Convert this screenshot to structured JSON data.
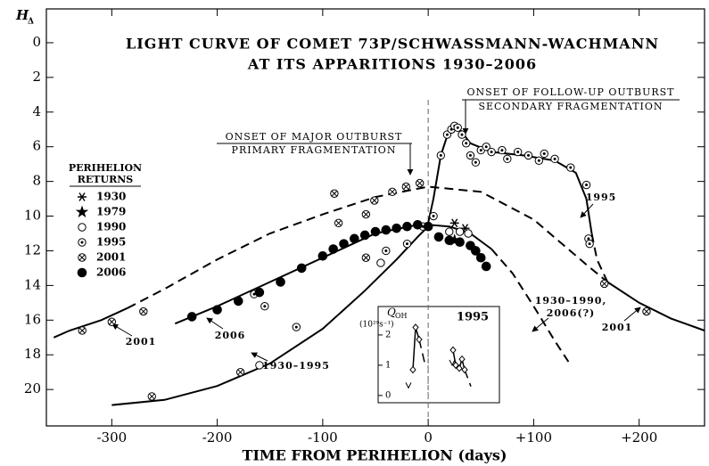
{
  "chart_data": {
    "type": "scatter",
    "title": [
      "LIGHT CURVE OF COMET 73P/SCHWASSMANN-WACHMANN",
      "AT ITS APPARITIONS 1930–2006"
    ],
    "x_label": "TIME FROM PERIHELION (days)",
    "y_label": "H",
    "y_label_sub": "Δ",
    "xlim": [
      -362,
      262
    ],
    "ylim": [
      -1.95,
      22.1
    ],
    "y_inverted": true,
    "xticks": [
      -300,
      -200,
      -100,
      0,
      {
        "value": 100,
        "label": "+100"
      },
      {
        "value": 200,
        "label": "+200"
      }
    ],
    "yticks": [
      0,
      2,
      4,
      6,
      8,
      10,
      12,
      14,
      16,
      18,
      20
    ],
    "legend_title": [
      "PERIHELION",
      "RETURNS"
    ],
    "series": [
      {
        "name": "1930",
        "marker": "asterisk",
        "x": [
          25,
          35
        ],
        "values": [
          10.4,
          10.7
        ]
      },
      {
        "name": "1979",
        "marker": "star",
        "x": [
          25
        ],
        "values": [
          11.4
        ]
      },
      {
        "name": "1990",
        "marker": "circle",
        "x": [
          -160,
          -45,
          20,
          30,
          38
        ],
        "values": [
          18.6,
          12.7,
          10.9,
          10.9,
          11.0
        ]
      },
      {
        "name": "1995",
        "marker": "dotted-circle",
        "x": [
          -165,
          -155,
          -125,
          -40,
          -20,
          -5,
          5,
          12,
          18,
          22,
          25,
          28,
          32,
          36,
          40,
          45,
          50,
          55,
          60,
          70,
          75,
          85,
          95,
          105,
          110,
          120,
          135,
          150,
          152,
          153
        ],
        "values": [
          14.5,
          15.2,
          16.4,
          12.0,
          11.6,
          10.6,
          10.0,
          6.5,
          5.3,
          5.0,
          4.8,
          4.9,
          5.3,
          5.8,
          6.5,
          6.9,
          6.2,
          6.0,
          6.3,
          6.2,
          6.7,
          6.3,
          6.5,
          6.8,
          6.4,
          6.7,
          7.2,
          8.2,
          11.3,
          11.6
        ]
      },
      {
        "name": "2001",
        "marker": "crossed-circle",
        "x": [
          -328,
          -300,
          -270,
          -262,
          -178,
          -89,
          -85,
          -59,
          -59,
          -51,
          -34,
          -21,
          -8,
          167,
          207
        ],
        "values": [
          16.6,
          16.1,
          15.5,
          20.4,
          19.0,
          8.7,
          10.4,
          9.9,
          12.4,
          9.1,
          8.6,
          8.3,
          8.1,
          13.9,
          15.5
        ]
      },
      {
        "name": "2006",
        "marker": "filled-circle",
        "x": [
          -224,
          -200,
          -180,
          -160,
          -140,
          -120,
          -100,
          -90,
          -80,
          -70,
          -60,
          -50,
          -40,
          -30,
          -20,
          -10,
          0,
          10,
          20,
          30,
          40,
          45,
          50,
          55
        ],
        "values": [
          15.8,
          15.4,
          14.9,
          14.4,
          13.8,
          13.0,
          12.3,
          11.9,
          11.6,
          11.3,
          11.1,
          10.9,
          10.8,
          10.7,
          10.6,
          10.5,
          10.6,
          11.2,
          11.4,
          11.5,
          11.7,
          12.0,
          12.4,
          12.9
        ]
      }
    ],
    "curves": [
      {
        "dashed": false,
        "x": [
          -355,
          -340,
          -310,
          -285
        ],
        "values": [
          17.0,
          16.6,
          16.0,
          15.3
        ]
      },
      {
        "dashed": true,
        "x": [
          -285,
          -250,
          -200,
          -150,
          -100,
          -50,
          0,
          50,
          100,
          150,
          170
        ],
        "values": [
          15.3,
          14.2,
          12.5,
          11.0,
          9.9,
          8.9,
          8.3,
          8.6,
          10.2,
          12.8,
          13.8
        ]
      },
      {
        "dashed": false,
        "x": [
          170,
          200,
          230,
          262
        ],
        "values": [
          13.8,
          15.0,
          15.9,
          16.6
        ]
      },
      {
        "dashed": false,
        "x": [
          -240,
          -200,
          -150,
          -100,
          -50,
          -10,
          0
        ],
        "values": [
          16.2,
          15.2,
          13.8,
          12.4,
          11.0,
          10.5,
          10.4
        ]
      },
      {
        "dashed": false,
        "x": [
          0,
          5,
          12,
          20,
          30,
          40,
          60,
          90,
          120,
          140,
          150,
          155
        ],
        "values": [
          10.4,
          9.0,
          6.5,
          5.0,
          5.0,
          5.8,
          6.3,
          6.5,
          6.8,
          7.5,
          9.0,
          11.0
        ]
      },
      {
        "dashed": true,
        "x": [
          155,
          160,
          170
        ],
        "values": [
          11.0,
          12.5,
          13.8
        ]
      },
      {
        "dashed": false,
        "x": [
          -300,
          -250,
          -200,
          -150,
          -100,
          -60,
          -30,
          -10,
          0
        ],
        "values": [
          20.9,
          20.6,
          19.8,
          18.5,
          16.5,
          14.3,
          12.5,
          11.2,
          10.6
        ]
      },
      {
        "dashed": false,
        "x": [
          0,
          20,
          40,
          60
        ],
        "values": [
          10.5,
          10.6,
          11.0,
          11.9
        ]
      },
      {
        "dashed": true,
        "x": [
          60,
          80,
          100,
          120,
          133
        ],
        "values": [
          11.9,
          13.3,
          15.2,
          17.2,
          18.4
        ]
      }
    ],
    "annotations": [
      "ONSET OF MAJOR OUTBURST",
      "PRIMARY FRAGMENTATION",
      "ONSET OF FOLLOW-UP OUTBURST",
      "SECONDARY FRAGMENTATION",
      "1995",
      "2001",
      "2006",
      "1930–1995",
      "1930–1990,",
      "2006(?)",
      "2001"
    ],
    "inset": {
      "title": "1995",
      "y_label": "Q",
      "y_label_sub": "OH",
      "y_unit": "(10²⁹s⁻¹)",
      "xlim": [
        -56,
        80
      ],
      "ylim": [
        -0.24,
        2.94
      ],
      "yticks": [
        0,
        1,
        2
      ],
      "points": {
        "x": [
          -17,
          -14,
          -10,
          28,
          31,
          35,
          38,
          41
        ],
        "values": [
          0.85,
          2.25,
          1.85,
          1.5,
          1.0,
          0.9,
          1.2,
          0.85
        ]
      },
      "upper_limits": {
        "x": [
          -22,
          27
        ],
        "values": [
          0.25,
          1.0
        ]
      },
      "curves": [
        {
          "dashed": false,
          "x": [
            -17,
            -14,
            -10
          ],
          "values": [
            0.85,
            2.25,
            1.85
          ]
        },
        {
          "dashed": true,
          "x": [
            -10,
            -4
          ],
          "values": [
            1.85,
            1.1
          ]
        },
        {
          "dashed": false,
          "x": [
            28,
            31,
            35,
            38,
            41
          ],
          "values": [
            1.5,
            1.0,
            0.9,
            1.2,
            0.85
          ]
        },
        {
          "dashed": true,
          "x": [
            41,
            48
          ],
          "values": [
            0.85,
            0.3
          ]
        }
      ]
    }
  }
}
